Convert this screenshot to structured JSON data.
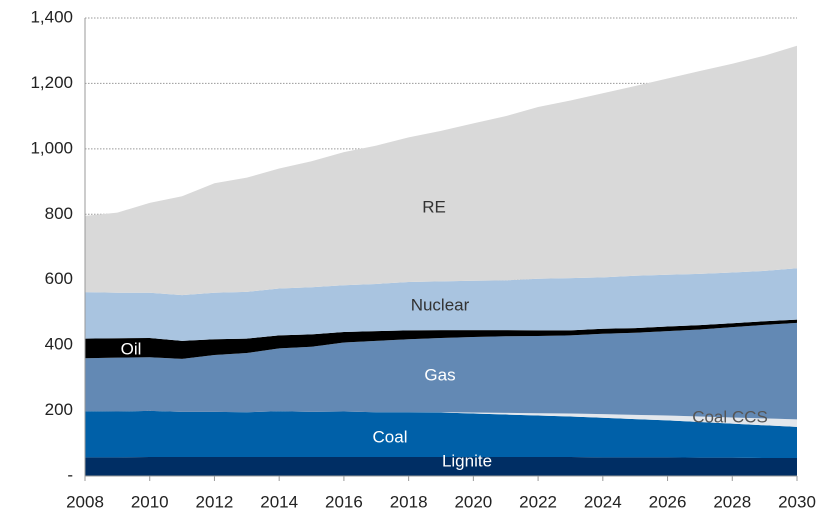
{
  "chart_data": {
    "type": "stacked_area",
    "x": [
      2008,
      2009,
      2010,
      2011,
      2012,
      2013,
      2014,
      2015,
      2016,
      2017,
      2018,
      2019,
      2020,
      2021,
      2022,
      2023,
      2024,
      2025,
      2026,
      2027,
      2028,
      2029,
      2030
    ],
    "xlim": [
      2008,
      2030
    ],
    "xticks": [
      2008,
      2010,
      2012,
      2014,
      2016,
      2018,
      2020,
      2022,
      2024,
      2026,
      2028,
      2030
    ],
    "ylim": [
      0,
      1400
    ],
    "yticks": [
      {
        "value": 0,
        "label": "-"
      },
      200,
      400,
      600,
      800,
      {
        "value": 1000,
        "label": "1,000"
      },
      {
        "value": 1200,
        "label": "1,200"
      },
      {
        "value": 1400,
        "label": "1,400"
      }
    ],
    "grid": true,
    "series": [
      {
        "name": "Lignite",
        "color": "#002e64",
        "values": [
          57,
          57,
          58,
          58,
          58,
          58,
          58,
          58,
          58,
          58,
          58,
          58,
          58,
          58,
          58,
          58,
          57,
          57,
          57,
          56,
          56,
          55,
          55
        ]
      },
      {
        "name": "Coal",
        "color": "#0060a8",
        "values": [
          141,
          140,
          141,
          138,
          138,
          137,
          140,
          138,
          139,
          137,
          137,
          136,
          133,
          130,
          127,
          124,
          121,
          117,
          113,
          109,
          104,
          100,
          95
        ]
      },
      {
        "name": "Coal CCS",
        "color": "#e3e7ec",
        "values": [
          0,
          0,
          0,
          0,
          0,
          0,
          0,
          0,
          0,
          0,
          0,
          1,
          3,
          5,
          7,
          9,
          11,
          13,
          15,
          17,
          19,
          21,
          23
        ]
      },
      {
        "name": "Gas",
        "color": "#6389b4",
        "values": [
          162,
          165,
          164,
          162,
          174,
          181,
          192,
          199,
          211,
          218,
          223,
          227,
          231,
          234,
          236,
          239,
          246,
          251,
          258,
          266,
          276,
          286,
          295
        ]
      },
      {
        "name": "Oil",
        "color": "#000000",
        "values": [
          60,
          59,
          59,
          55,
          48,
          44,
          40,
          38,
          32,
          30,
          27,
          24,
          21,
          19,
          17,
          15,
          15,
          14,
          14,
          13,
          12,
          11,
          10
        ]
      },
      {
        "name": "Nuclear",
        "color": "#a9c4e0",
        "values": [
          142,
          139,
          138,
          140,
          142,
          143,
          143,
          144,
          143,
          144,
          148,
          149,
          151,
          152,
          158,
          160,
          157,
          160,
          158,
          157,
          155,
          154,
          157
        ]
      },
      {
        "name": "RE",
        "color": "#d9d9d9",
        "values": [
          233,
          245,
          275,
          302,
          335,
          349,
          367,
          385,
          407,
          423,
          442,
          460,
          481,
          502,
          525,
          543,
          563,
          580,
          600,
          620,
          638,
          658,
          680
        ]
      }
    ]
  }
}
